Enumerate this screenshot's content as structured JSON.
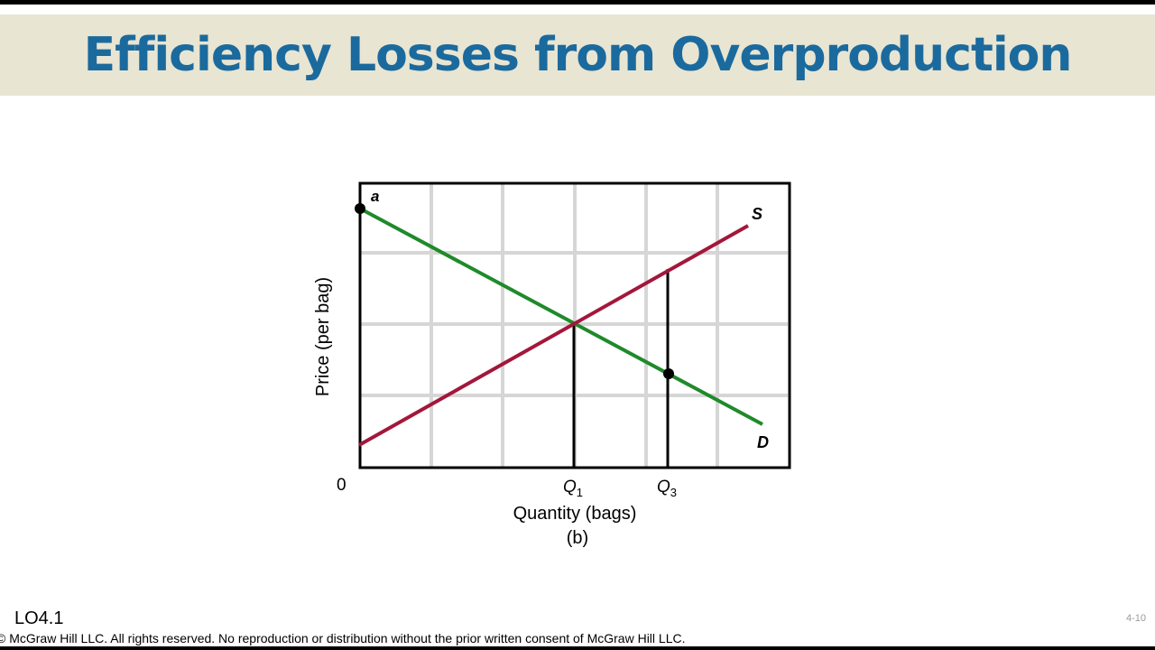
{
  "slide": {
    "title": "Efficiency Losses from Overproduction",
    "lo_tag": "LO4.1",
    "copyright": "© McGraw Hill LLC. All rights reserved. No reproduction or distribution without the prior written consent of McGraw Hill LLC.",
    "slide_number": "4-10"
  },
  "diagram": {
    "ylabel": "Price (per bag)",
    "xlabel": "Quantity (bags)",
    "panel_label": "(b)",
    "origin_label": "0",
    "point_a_label": "a",
    "supply_label": "S",
    "demand_label": "D",
    "q1_label": "Q",
    "q1_sub": "1",
    "q3_label": "Q",
    "q3_sub": "3",
    "colors": {
      "supply": "#a3173b",
      "demand": "#1f8a2a",
      "grid": "#d6d6d6",
      "frame": "#000000"
    }
  }
}
